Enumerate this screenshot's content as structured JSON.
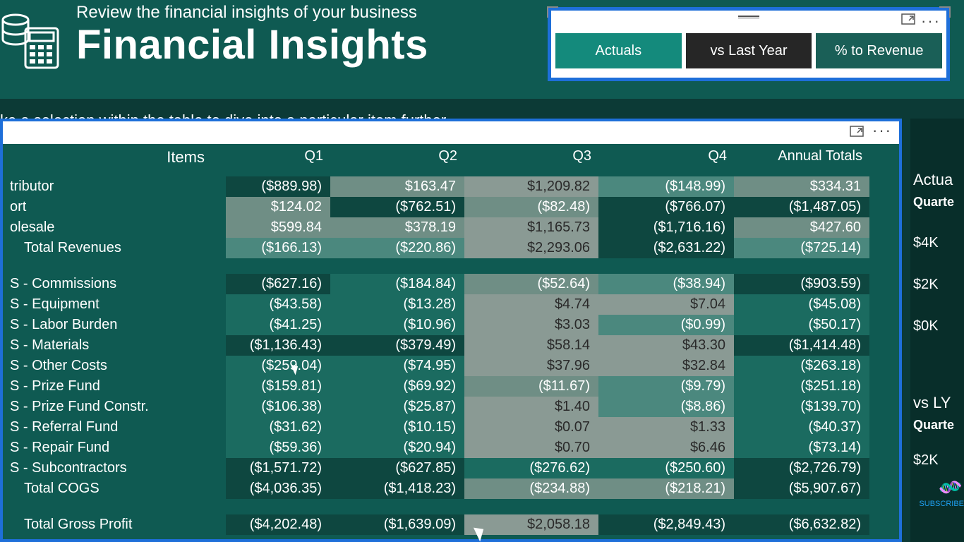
{
  "banner": {
    "subtitle": "Review the financial insights of your business",
    "title": "Financial Insights"
  },
  "slicer": {
    "tabs": [
      {
        "id": "actuals",
        "label": "Actuals",
        "selected": true,
        "bg": "#148a7c"
      },
      {
        "id": "lastyear",
        "label": "vs Last Year",
        "selected": false,
        "bg": "#262626"
      },
      {
        "id": "ptrev",
        "label": "% to Revenue",
        "selected": false,
        "bg": "#1a5f57"
      }
    ]
  },
  "instruction": "ke a selection within the table to dive into a particular item further",
  "table": {
    "columns": [
      "Items",
      "Q1",
      "Q2",
      "Q3",
      "Q4",
      "Annual Totals"
    ],
    "rows": [
      {
        "label": "tributor",
        "indent": 0,
        "vals": [
          "($889.98)",
          "$163.47",
          "$1,209.82",
          "($148.99)",
          "$334.31"
        ],
        "shades": [
          "s-dk",
          "s-pg",
          "s-gr",
          "s-lt",
          "s-pg"
        ]
      },
      {
        "label": "ort",
        "indent": 0,
        "vals": [
          "$124.02",
          "($762.51)",
          "($82.48)",
          "($766.07)",
          "($1,487.05)"
        ],
        "shades": [
          "s-pg",
          "s-dk",
          "s-pg",
          "s-dk",
          "s-dk"
        ]
      },
      {
        "label": "olesale",
        "indent": 0,
        "vals": [
          "$599.84",
          "$378.19",
          "$1,165.73",
          "($1,716.16)",
          "$427.60"
        ],
        "shades": [
          "s-pg",
          "s-pg",
          "s-gr",
          "s-dk",
          "s-pg"
        ]
      },
      {
        "label": "Total Revenues",
        "indent": 1,
        "total": true,
        "vals": [
          "($166.13)",
          "($220.86)",
          "$2,293.06",
          "($2,631.22)",
          "($725.14)"
        ],
        "shades": [
          "s-lt",
          "s-lt",
          "s-gr",
          "s-dk",
          "s-lt"
        ]
      },
      {
        "spacer": true
      },
      {
        "label": "S - Commissions",
        "indent": 0,
        "vals": [
          "($627.16)",
          "($184.84)",
          "($52.64)",
          "($38.94)",
          "($903.59)"
        ],
        "shades": [
          "s-dk",
          "s-md",
          "s-pg",
          "s-lt",
          "s-dk"
        ]
      },
      {
        "label": "S - Equipment",
        "indent": 0,
        "vals": [
          "($43.58)",
          "($13.28)",
          "$4.74",
          "$7.04",
          "($45.08)"
        ],
        "shades": [
          "s-md",
          "s-md",
          "s-gr",
          "s-gr",
          "s-md"
        ]
      },
      {
        "label": "S - Labor Burden",
        "indent": 0,
        "vals": [
          "($41.25)",
          "($10.96)",
          "$3.03",
          "($0.99)",
          "($50.17)"
        ],
        "shades": [
          "s-md",
          "s-md",
          "s-gr",
          "s-lt",
          "s-md"
        ]
      },
      {
        "label": "S - Materials",
        "indent": 0,
        "vals": [
          "($1,136.43)",
          "($379.49)",
          "$58.14",
          "$43.30",
          "($1,414.48)"
        ],
        "shades": [
          "s-dk",
          "s-dk",
          "s-gr",
          "s-gr",
          "s-dk"
        ]
      },
      {
        "label": "S - Other Costs",
        "indent": 0,
        "vals": [
          "($259.04)",
          "($74.95)",
          "$37.96",
          "$32.84",
          "($263.18)"
        ],
        "shades": [
          "s-md",
          "s-md",
          "s-gr",
          "s-gr",
          "s-md"
        ]
      },
      {
        "label": "S - Prize Fund",
        "indent": 0,
        "vals": [
          "($159.81)",
          "($69.92)",
          "($11.67)",
          "($9.79)",
          "($251.18)"
        ],
        "shades": [
          "s-md",
          "s-md",
          "s-pg",
          "s-lt",
          "s-md"
        ]
      },
      {
        "label": "S - Prize Fund Constr.",
        "indent": 0,
        "vals": [
          "($106.38)",
          "($25.87)",
          "$1.40",
          "($8.86)",
          "($139.70)"
        ],
        "shades": [
          "s-md",
          "s-md",
          "s-gr",
          "s-lt",
          "s-md"
        ]
      },
      {
        "label": "S - Referral Fund",
        "indent": 0,
        "vals": [
          "($31.62)",
          "($10.15)",
          "$0.07",
          "$1.33",
          "($40.37)"
        ],
        "shades": [
          "s-md",
          "s-md",
          "s-gr",
          "s-gr",
          "s-md"
        ]
      },
      {
        "label": "S - Repair Fund",
        "indent": 0,
        "vals": [
          "($59.36)",
          "($20.94)",
          "$0.70",
          "$6.46",
          "($73.14)"
        ],
        "shades": [
          "s-md",
          "s-md",
          "s-gr",
          "s-gr",
          "s-md"
        ]
      },
      {
        "label": "S - Subcontractors",
        "indent": 0,
        "vals": [
          "($1,571.72)",
          "($627.85)",
          "($276.62)",
          "($250.60)",
          "($2,726.79)"
        ],
        "shades": [
          "s-dk",
          "s-dk",
          "s-md",
          "s-md",
          "s-dk"
        ]
      },
      {
        "label": "Total COGS",
        "indent": 1,
        "total": true,
        "vals": [
          "($4,036.35)",
          "($1,418.23)",
          "($234.88)",
          "($218.21)",
          "($5,907.67)"
        ],
        "shades": [
          "s-dk",
          "s-dk",
          "s-pg",
          "s-pg",
          "s-dk"
        ]
      },
      {
        "spacer": true
      },
      {
        "label": "Total Gross Profit",
        "indent": 1,
        "total": true,
        "vals": [
          "($4,202.48)",
          "($1,639.09)",
          "$2,058.18",
          "($2,849.43)",
          "($6,632.82)"
        ],
        "shades": [
          "s-dk",
          "s-dk",
          "s-gr",
          "s-dk",
          "s-dk"
        ]
      }
    ]
  },
  "sidebar": {
    "items": [
      "Actua",
      "Quarte",
      "$4K",
      "$2K",
      "$0K",
      "",
      "",
      "vs LY",
      "Quarte",
      "$2K"
    ]
  },
  "decor": {
    "subscribe": "SUBSCRIBE"
  }
}
